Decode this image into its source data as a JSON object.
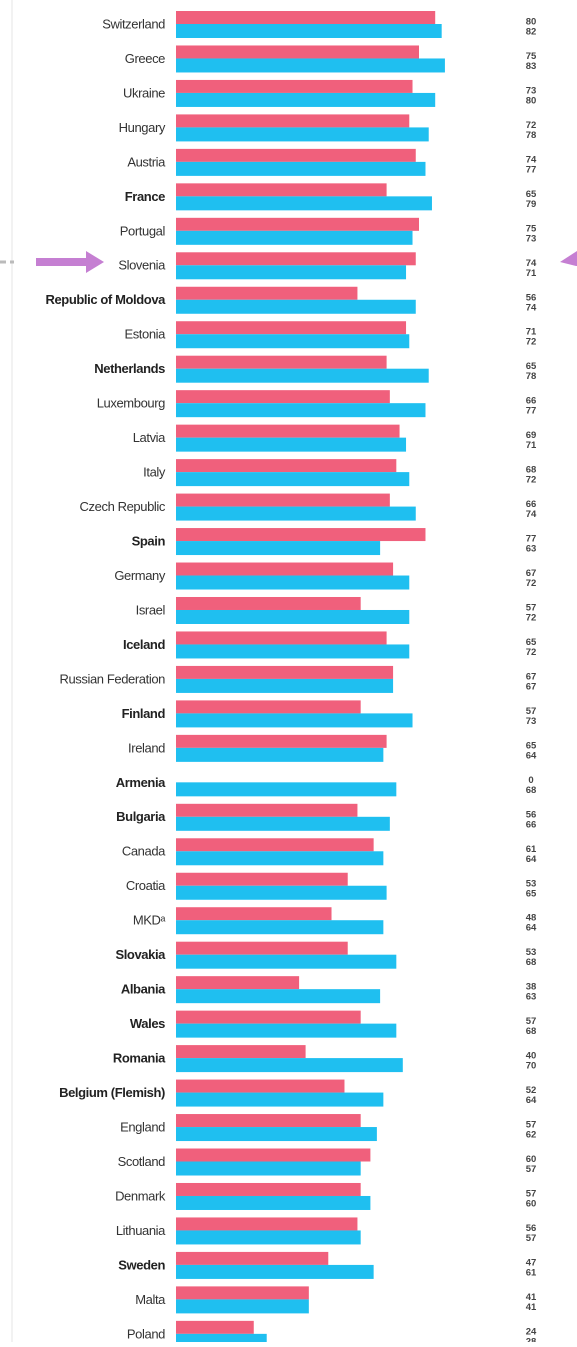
{
  "chart_data": {
    "type": "bar",
    "orientation": "horizontal",
    "categories": [
      "Switzerland",
      "Greece",
      "Ukraine",
      "Hungary",
      "Austria",
      "France",
      "Portugal",
      "Slovenia",
      "Republic of Moldova",
      "Estonia",
      "Netherlands",
      "Luxembourg",
      "Latvia",
      "Italy",
      "Czech Republic",
      "Spain",
      "Germany",
      "Israel",
      "Iceland",
      "Russian Federation",
      "Finland",
      "Ireland",
      "Armenia",
      "Bulgaria",
      "Canada",
      "Croatia",
      "MKDᵃ",
      "Slovakia",
      "Albania",
      "Wales",
      "Romania",
      "Belgium (Flemish)",
      "England",
      "Scotland",
      "Denmark",
      "Lithuania",
      "Sweden",
      "Malta",
      "Poland"
    ],
    "bold_categories": [
      false,
      false,
      false,
      false,
      false,
      true,
      false,
      false,
      true,
      false,
      true,
      false,
      false,
      false,
      false,
      true,
      false,
      false,
      true,
      false,
      true,
      false,
      true,
      true,
      false,
      false,
      false,
      true,
      true,
      true,
      true,
      true,
      false,
      false,
      false,
      false,
      true,
      false,
      false
    ],
    "series": [
      {
        "color": "#f0607c",
        "values": [
          80,
          75,
          73,
          72,
          74,
          65,
          75,
          74,
          56,
          71,
          65,
          66,
          69,
          68,
          66,
          77,
          67,
          57,
          65,
          67,
          57,
          65,
          0,
          56,
          61,
          53,
          48,
          53,
          38,
          57,
          40,
          52,
          57,
          60,
          57,
          56,
          47,
          41,
          24
        ]
      },
      {
        "color": "#1fbff0",
        "values": [
          82,
          83,
          80,
          78,
          77,
          79,
          73,
          71,
          74,
          72,
          78,
          77,
          71,
          72,
          74,
          63,
          72,
          72,
          72,
          67,
          73,
          64,
          68,
          66,
          64,
          65,
          64,
          68,
          63,
          68,
          70,
          64,
          62,
          57,
          60,
          57,
          61,
          41,
          28
        ]
      }
    ],
    "xlim": [
      0,
      100
    ]
  }
}
